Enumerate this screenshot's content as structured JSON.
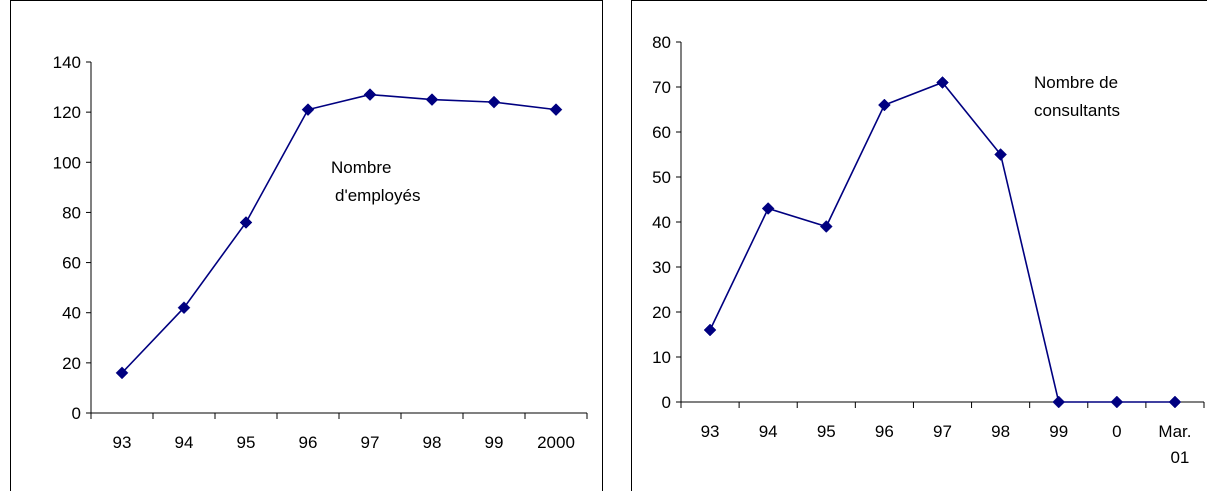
{
  "chart_data": [
    {
      "type": "line",
      "categories": [
        "93",
        "94",
        "95",
        "96",
        "97",
        "98",
        "99",
        "2000"
      ],
      "series": [
        {
          "values": [
            16,
            42,
            76,
            121,
            127,
            125,
            124,
            121
          ]
        }
      ],
      "annotation": [
        "Nombre",
        "d'employés"
      ],
      "ylim": [
        0,
        140
      ],
      "yticks": [
        "0",
        "20",
        "40",
        "60",
        "80",
        "100",
        "120",
        "140"
      ],
      "grid": false,
      "legend": "none",
      "line_color": "#000080",
      "marker_color": "#000080"
    },
    {
      "type": "line",
      "categories": [
        "93",
        "94",
        "95",
        "96",
        "97",
        "98",
        "99",
        "0",
        "Mar.|01"
      ],
      "series": [
        {
          "values": [
            16,
            43,
            39,
            66,
            71,
            55,
            0,
            0,
            0
          ]
        }
      ],
      "annotation": [
        "Nombre de",
        "consultants"
      ],
      "ylim": [
        0,
        80
      ],
      "yticks": [
        "0",
        "10",
        "20",
        "30",
        "40",
        "50",
        "60",
        "70",
        "80"
      ],
      "grid": false,
      "legend": "none",
      "line_color": "#000080",
      "marker_color": "#000080"
    }
  ]
}
